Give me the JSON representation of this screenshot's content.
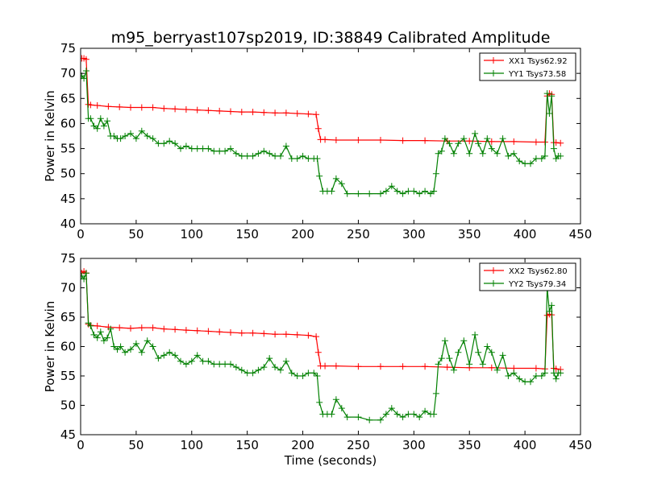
{
  "figure": {
    "title": "m95_berryast107sp2019, ID:38849 Calibrated Amplitude",
    "background": "#ffffff"
  },
  "chart_data": [
    {
      "type": "line",
      "ylabel": "Power in Kelvin",
      "xlabel": "",
      "xlim": [
        0,
        450
      ],
      "ylim": [
        40,
        75
      ],
      "xticks": [
        0,
        50,
        100,
        150,
        200,
        250,
        300,
        350,
        400,
        450
      ],
      "yticks": [
        40,
        45,
        50,
        55,
        60,
        65,
        70,
        75
      ],
      "grid": false,
      "legend_position": "top-right",
      "series": [
        {
          "name": "XX1 Tsys62.92",
          "color": "#ff0000",
          "marker": "plus",
          "x": [
            1,
            3,
            5,
            7,
            9,
            15,
            25,
            35,
            45,
            55,
            65,
            75,
            85,
            95,
            105,
            115,
            125,
            135,
            145,
            155,
            165,
            175,
            185,
            195,
            205,
            212,
            214,
            216,
            220,
            230,
            250,
            270,
            290,
            310,
            330,
            350,
            370,
            390,
            410,
            418,
            420,
            422,
            424,
            426,
            428,
            432
          ],
          "y": [
            73.0,
            73.0,
            72.8,
            63.8,
            63.7,
            63.6,
            63.4,
            63.3,
            63.2,
            63.2,
            63.2,
            63.0,
            62.9,
            62.8,
            62.7,
            62.6,
            62.5,
            62.4,
            62.3,
            62.3,
            62.2,
            62.1,
            62.1,
            62.0,
            61.9,
            61.8,
            59.0,
            56.8,
            56.8,
            56.7,
            56.7,
            56.7,
            56.6,
            56.6,
            56.5,
            56.5,
            56.4,
            56.4,
            56.3,
            56.3,
            65.5,
            66.0,
            65.8,
            56.2,
            56.2,
            56.1
          ]
        },
        {
          "name": "YY1 Tsys73.58",
          "color": "#008000",
          "marker": "plus",
          "x": [
            1,
            3,
            5,
            7,
            9,
            12,
            15,
            18,
            21,
            24,
            27,
            30,
            33,
            36,
            40,
            45,
            50,
            55,
            60,
            65,
            70,
            75,
            80,
            85,
            90,
            95,
            100,
            105,
            110,
            115,
            120,
            125,
            130,
            135,
            140,
            145,
            150,
            155,
            160,
            165,
            170,
            175,
            180,
            185,
            190,
            195,
            200,
            205,
            210,
            213,
            215,
            218,
            222,
            226,
            230,
            235,
            240,
            250,
            260,
            270,
            275,
            280,
            285,
            290,
            295,
            300,
            305,
            310,
            315,
            318,
            320,
            322,
            325,
            328,
            332,
            336,
            340,
            345,
            350,
            355,
            358,
            362,
            366,
            370,
            375,
            380,
            385,
            390,
            395,
            400,
            405,
            410,
            415,
            418,
            420,
            422,
            424,
            426,
            428,
            430,
            432
          ],
          "y": [
            69.5,
            69.0,
            70.5,
            61.0,
            61.0,
            59.5,
            59.0,
            61.0,
            59.5,
            60.5,
            57.5,
            57.5,
            57.0,
            57.0,
            57.5,
            58.0,
            57.0,
            58.5,
            57.5,
            57.0,
            56.0,
            56.0,
            56.5,
            56.0,
            55.0,
            55.5,
            55.0,
            55.0,
            55.0,
            55.0,
            54.5,
            54.5,
            54.5,
            55.0,
            54.0,
            53.5,
            53.5,
            53.5,
            54.0,
            54.5,
            54.0,
            53.5,
            53.5,
            55.5,
            53.0,
            53.0,
            53.5,
            53.0,
            53.0,
            53.0,
            49.5,
            46.5,
            46.5,
            46.5,
            49.0,
            48.0,
            46.0,
            46.0,
            46.0,
            46.0,
            46.5,
            47.5,
            46.5,
            46.0,
            46.5,
            46.5,
            46.0,
            46.5,
            46.0,
            46.5,
            50.0,
            54.0,
            54.5,
            57.0,
            56.0,
            54.0,
            56.0,
            57.0,
            54.0,
            58.0,
            56.0,
            54.0,
            57.0,
            55.0,
            54.0,
            57.0,
            53.5,
            54.0,
            52.5,
            52.0,
            52.0,
            53.0,
            53.0,
            53.5,
            66.0,
            62.0,
            65.5,
            55.0,
            53.0,
            53.5,
            53.5
          ]
        }
      ]
    },
    {
      "type": "line",
      "ylabel": "Power in Kelvin",
      "xlabel": "Time (seconds)",
      "xlim": [
        0,
        450
      ],
      "ylim": [
        45,
        75
      ],
      "xticks": [
        0,
        50,
        100,
        150,
        200,
        250,
        300,
        350,
        400,
        450
      ],
      "yticks": [
        45,
        50,
        55,
        60,
        65,
        70,
        75
      ],
      "grid": false,
      "legend_position": "top-right",
      "series": [
        {
          "name": "XX2 Tsys62.80",
          "color": "#ff0000",
          "marker": "plus",
          "x": [
            1,
            3,
            5,
            7,
            9,
            15,
            25,
            35,
            45,
            55,
            65,
            75,
            85,
            95,
            105,
            115,
            125,
            135,
            145,
            155,
            165,
            175,
            185,
            195,
            205,
            212,
            214,
            216,
            220,
            230,
            250,
            270,
            290,
            310,
            330,
            350,
            370,
            390,
            410,
            418,
            420,
            422,
            424,
            426,
            428,
            432
          ],
          "y": [
            72.5,
            72.8,
            72.5,
            63.8,
            63.6,
            63.5,
            63.3,
            63.2,
            63.1,
            63.2,
            63.2,
            63.0,
            62.9,
            62.8,
            62.7,
            62.6,
            62.5,
            62.4,
            62.3,
            62.3,
            62.2,
            62.1,
            62.1,
            62.0,
            61.9,
            61.7,
            59.0,
            56.7,
            56.7,
            56.7,
            56.6,
            56.6,
            56.6,
            56.6,
            56.5,
            56.4,
            56.4,
            56.3,
            56.3,
            56.2,
            65.3,
            65.5,
            65.4,
            56.3,
            56.2,
            56.1
          ]
        },
        {
          "name": "YY2 Tsys79.34",
          "color": "#008000",
          "marker": "plus",
          "x": [
            1,
            3,
            5,
            7,
            9,
            12,
            15,
            18,
            21,
            24,
            27,
            30,
            33,
            36,
            40,
            45,
            50,
            55,
            60,
            65,
            70,
            75,
            80,
            85,
            90,
            95,
            100,
            105,
            110,
            115,
            120,
            125,
            130,
            135,
            140,
            145,
            150,
            155,
            160,
            165,
            170,
            175,
            180,
            185,
            190,
            195,
            200,
            205,
            210,
            213,
            215,
            218,
            222,
            226,
            230,
            235,
            240,
            250,
            260,
            270,
            275,
            280,
            285,
            290,
            295,
            300,
            305,
            310,
            315,
            318,
            320,
            322,
            325,
            328,
            332,
            336,
            340,
            345,
            350,
            355,
            358,
            362,
            366,
            370,
            375,
            380,
            385,
            390,
            395,
            400,
            405,
            410,
            415,
            418,
            420,
            422,
            424,
            426,
            428,
            430,
            432
          ],
          "y": [
            72.0,
            71.5,
            72.5,
            64.0,
            63.5,
            62.0,
            61.5,
            62.5,
            61.0,
            61.5,
            63.0,
            60.0,
            59.5,
            60.0,
            59.0,
            59.5,
            60.5,
            59.0,
            61.0,
            60.0,
            58.0,
            58.5,
            59.0,
            58.5,
            57.5,
            57.0,
            57.5,
            58.5,
            57.5,
            57.5,
            57.0,
            57.0,
            57.0,
            57.0,
            56.5,
            56.0,
            55.5,
            55.5,
            56.0,
            56.5,
            58.0,
            56.5,
            56.0,
            57.5,
            55.5,
            55.0,
            55.0,
            55.5,
            55.5,
            55.0,
            50.5,
            48.5,
            48.5,
            48.5,
            51.0,
            49.5,
            48.0,
            48.0,
            47.5,
            47.5,
            48.5,
            49.5,
            48.5,
            48.0,
            48.5,
            48.5,
            48.0,
            49.0,
            48.5,
            48.5,
            52.0,
            57.0,
            58.0,
            61.0,
            58.0,
            56.0,
            59.0,
            61.0,
            57.0,
            62.0,
            59.0,
            57.0,
            60.0,
            59.0,
            56.0,
            58.5,
            55.0,
            55.5,
            54.5,
            54.0,
            54.0,
            55.0,
            55.0,
            55.5,
            70.0,
            66.0,
            67.0,
            55.5,
            54.5,
            55.5,
            55.5
          ]
        }
      ]
    }
  ]
}
